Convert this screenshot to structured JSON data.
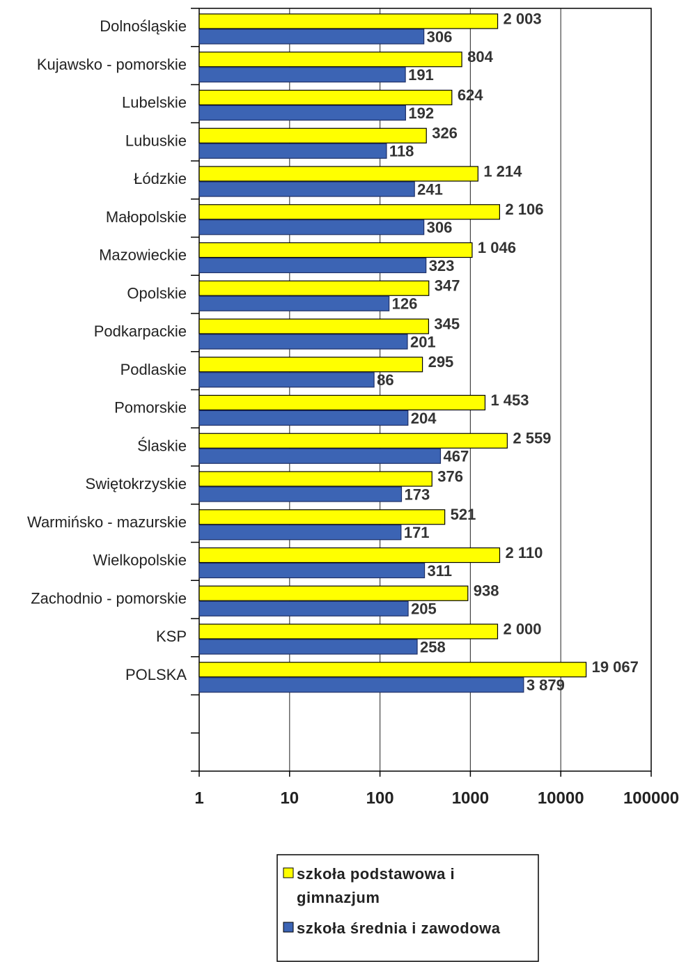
{
  "chart_data": {
    "type": "bar",
    "orientation": "horizontal",
    "categories": [
      "Dolnośląskie",
      "Kujawsko - pomorskie",
      "Lubelskie",
      "Lubuskie",
      "Łódzkie",
      "Małopolskie",
      "Mazowieckie",
      "Opolskie",
      "Podkarpackie",
      "Podlaskie",
      "Pomorskie",
      "Ślaskie",
      "Swiętokrzyskie",
      "Warmińsko - mazurskie",
      "Wielkopolskie",
      "Zachodnio - pomorskie",
      "KSP",
      "POLSKA",
      null,
      null
    ],
    "series": [
      {
        "name": "szkoła podstawowa i gimnazjum",
        "color": "#ffff00",
        "values": [
          2003,
          804,
          624,
          326,
          1214,
          2106,
          1046,
          347,
          345,
          295,
          1453,
          2559,
          376,
          521,
          2110,
          938,
          2000,
          19067,
          null,
          null
        ],
        "value_labels": [
          "2 003",
          "804",
          "624",
          "326",
          "1 214",
          "2 106",
          "1 046",
          "347",
          "345",
          "295",
          "1 453",
          "2 559",
          "376",
          "521",
          "2 110",
          "938",
          "2 000",
          "19 067",
          null,
          null
        ]
      },
      {
        "name": "szkoła średnia i zawodowa",
        "color": "#3c64b4",
        "values": [
          306,
          191,
          192,
          118,
          241,
          306,
          323,
          126,
          201,
          86,
          204,
          467,
          173,
          171,
          311,
          205,
          258,
          3879,
          null,
          null
        ],
        "value_labels": [
          "306",
          "191",
          "192",
          "118",
          "241",
          "306",
          "323",
          "126",
          "201",
          "86",
          "204",
          "467",
          "173",
          "171",
          "311",
          "205",
          "258",
          "3 879",
          null,
          null
        ]
      }
    ],
    "xscale": "log",
    "xlim": [
      1,
      100000
    ],
    "xticks": [
      1,
      10,
      100,
      1000,
      10000,
      100000
    ],
    "grid": true,
    "legend": "bottom"
  }
}
